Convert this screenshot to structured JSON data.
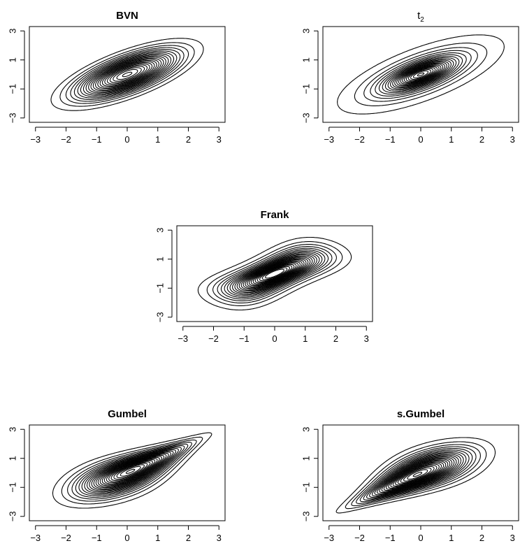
{
  "chart_data": [
    {
      "type": "contour",
      "title": "BVN",
      "family": "bvn",
      "xlim": [
        -3.2,
        3.2
      ],
      "ylim": [
        -3.3,
        3.3
      ],
      "x_ticks": [
        -3,
        -2,
        -1,
        0,
        1,
        2,
        3
      ],
      "y_ticks": [
        -3,
        -1,
        1,
        3
      ],
      "x_tick_labels": [
        "−3",
        "−2",
        "−1",
        "0",
        "1",
        "2",
        "3"
      ],
      "y_tick_labels": [
        "−3",
        "−1",
        "1",
        "3"
      ],
      "outer_contour_extent": {
        "x": [
          -2.0,
          2.5
        ],
        "y": [
          -2.2,
          2.3
        ]
      }
    },
    {
      "type": "contour",
      "title": "t",
      "title_subscript": "2",
      "family": "t2",
      "xlim": [
        -3.2,
        3.2
      ],
      "ylim": [
        -3.3,
        3.3
      ],
      "x_ticks": [
        -3,
        -2,
        -1,
        0,
        1,
        2,
        3
      ],
      "y_ticks": [
        -3,
        -1,
        1,
        3
      ],
      "x_tick_labels": [
        "−3",
        "−2",
        "−1",
        "0",
        "1",
        "2",
        "3"
      ],
      "y_tick_labels": [
        "−3",
        "−1",
        "1",
        "3"
      ],
      "outer_contour_extent": {
        "x": [
          -2.3,
          2.4
        ],
        "y": [
          -2.5,
          2.6
        ]
      }
    },
    {
      "type": "contour",
      "title": "Frank",
      "family": "frank",
      "xlim": [
        -3.2,
        3.2
      ],
      "ylim": [
        -3.3,
        3.3
      ],
      "x_ticks": [
        -3,
        -2,
        -1,
        0,
        1,
        2,
        3
      ],
      "y_ticks": [
        -3,
        -1,
        1,
        3
      ],
      "x_tick_labels": [
        "−3",
        "−2",
        "−1",
        "0",
        "1",
        "2",
        "3"
      ],
      "y_tick_labels": [
        "−3",
        "−1",
        "1",
        "3"
      ],
      "outer_contour_extent": {
        "x": [
          -2.5,
          2.5
        ],
        "y": [
          -2.4,
          2.4
        ]
      }
    },
    {
      "type": "contour",
      "title": "Gumbel",
      "family": "gumbel",
      "xlim": [
        -3.2,
        3.2
      ],
      "ylim": [
        -3.3,
        3.3
      ],
      "x_ticks": [
        -3,
        -2,
        -1,
        0,
        1,
        2,
        3
      ],
      "y_ticks": [
        -3,
        -1,
        1,
        3
      ],
      "x_tick_labels": [
        "−3",
        "−2",
        "−1",
        "0",
        "1",
        "2",
        "3"
      ],
      "y_tick_labels": [
        "−3",
        "−1",
        "1",
        "3"
      ],
      "outer_contour_extent": {
        "x": [
          -2.0,
          2.7
        ],
        "y": [
          -2.0,
          2.8
        ]
      }
    },
    {
      "type": "contour",
      "title": "s.Gumbel",
      "family": "sgumbel",
      "xlim": [
        -3.2,
        3.2
      ],
      "ylim": [
        -3.3,
        3.3
      ],
      "x_ticks": [
        -3,
        -2,
        -1,
        0,
        1,
        2,
        3
      ],
      "y_ticks": [
        -3,
        -1,
        1,
        3
      ],
      "x_tick_labels": [
        "−3",
        "−2",
        "−1",
        "0",
        "1",
        "2",
        "3"
      ],
      "y_tick_labels": [
        "−3",
        "−1",
        "1",
        "3"
      ],
      "outer_contour_extent": {
        "x": [
          -2.7,
          2.4
        ],
        "y": [
          -2.8,
          2.3
        ]
      }
    }
  ]
}
